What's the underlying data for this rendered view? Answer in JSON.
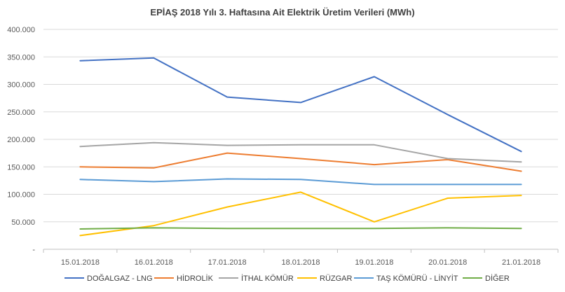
{
  "chart_data": {
    "type": "line",
    "title": "EPİAŞ 2018 Yılı 3. Haftasına Ait Elektrik Üretim Verileri (MWh)",
    "xlabel": "",
    "ylabel": "",
    "categories": [
      "15.01.2018",
      "16.01.2018",
      "17.01.2018",
      "18.01.2018",
      "19.01.2018",
      "20.01.2018",
      "21.01.2018"
    ],
    "ylim": [
      0,
      400000
    ],
    "yticks": [
      0,
      50000,
      100000,
      150000,
      200000,
      250000,
      300000,
      350000,
      400000
    ],
    "ytick_labels": [
      "-",
      "50.000",
      "100.000",
      "150.000",
      "200.000",
      "250.000",
      "300.000",
      "350.000",
      "400.000"
    ],
    "grid": true,
    "legend_position": "bottom",
    "series": [
      {
        "name": "DOĞALGAZ - LNG",
        "color": "#4472c4",
        "values": [
          343000,
          348000,
          277000,
          267000,
          314000,
          245000,
          178000
        ]
      },
      {
        "name": "HİDROLİK",
        "color": "#ed7d31",
        "values": [
          150000,
          148000,
          175000,
          165000,
          154000,
          163000,
          142000
        ]
      },
      {
        "name": "İTHAL KÖMÜR",
        "color": "#a5a5a5",
        "values": [
          187000,
          194000,
          189000,
          190000,
          190000,
          165000,
          159000
        ]
      },
      {
        "name": "RÜZGAR",
        "color": "#ffc000",
        "values": [
          25000,
          43000,
          77000,
          104000,
          50000,
          93000,
          98000
        ]
      },
      {
        "name": "TAŞ KÖMÜRÜ - LİNYİT",
        "color": "#5b9bd5",
        "values": [
          127000,
          123000,
          128000,
          127000,
          118000,
          118000,
          118000
        ]
      },
      {
        "name": "DİĞER",
        "color": "#70ad47",
        "values": [
          37000,
          39000,
          38000,
          38000,
          38000,
          39000,
          38000
        ]
      }
    ]
  }
}
